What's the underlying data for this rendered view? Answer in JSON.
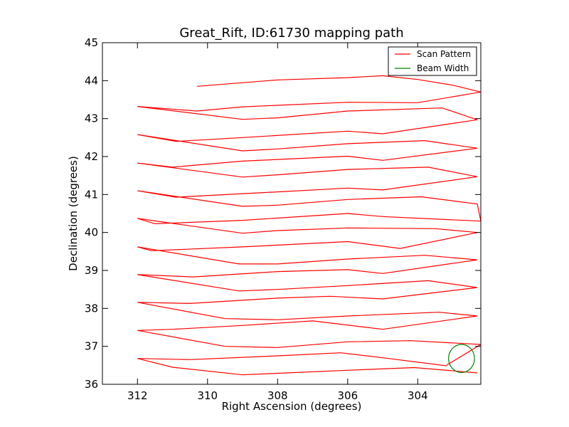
{
  "chart_data": {
    "type": "line",
    "title": "Great_Rift, ID:61730 mapping path",
    "xlabel": "Right Ascension (degrees)",
    "ylabel": "Declination (degrees)",
    "xlim": [
      313.0,
      302.2
    ],
    "ylim": [
      36,
      45
    ],
    "x_ticks": [
      312,
      310,
      308,
      306,
      304
    ],
    "y_ticks": [
      36,
      37,
      38,
      39,
      40,
      41,
      42,
      43,
      44,
      45
    ],
    "grid": false,
    "legend": {
      "placement": "top-right",
      "entries": [
        "Scan Pattern",
        "Beam Width"
      ]
    },
    "colors": {
      "scan": "#ff0000",
      "beam": "#008000"
    },
    "series": [
      {
        "name": "Scan Pattern",
        "points": [
          [
            302.3,
            36.3
          ],
          [
            304.1,
            36.44
          ],
          [
            306,
            36.37
          ],
          [
            308,
            36.29
          ],
          [
            309,
            36.25
          ],
          [
            311,
            36.45
          ],
          [
            312,
            36.68
          ],
          [
            310.5,
            36.65
          ],
          [
            308,
            36.75
          ],
          [
            306.2,
            36.83
          ],
          [
            305,
            36.7
          ],
          [
            303.2,
            36.49
          ],
          [
            302.2,
            37.05
          ],
          [
            304.2,
            37.15
          ],
          [
            306,
            37.12
          ],
          [
            308,
            36.97
          ],
          [
            309.5,
            37
          ],
          [
            312,
            37.42
          ],
          [
            311,
            37.45
          ],
          [
            309,
            37.55
          ],
          [
            307,
            37.67
          ],
          [
            305,
            37.45
          ],
          [
            302.3,
            37.8
          ],
          [
            303.4,
            37.9
          ],
          [
            306,
            37.8
          ],
          [
            308,
            37.7
          ],
          [
            309.5,
            37.73
          ],
          [
            312,
            38.16
          ],
          [
            310.5,
            38.13
          ],
          [
            308,
            38.27
          ],
          [
            306.5,
            38.32
          ],
          [
            305,
            38.25
          ],
          [
            302.3,
            38.55
          ],
          [
            303.7,
            38.73
          ],
          [
            306,
            38.6
          ],
          [
            308,
            38.5
          ],
          [
            309.1,
            38.46
          ],
          [
            312,
            38.89
          ],
          [
            310.4,
            38.83
          ],
          [
            308,
            38.97
          ],
          [
            306,
            39.02
          ],
          [
            305,
            38.92
          ],
          [
            302.3,
            39.28
          ],
          [
            303.8,
            39.4
          ],
          [
            306,
            39.3
          ],
          [
            308,
            39.17
          ],
          [
            309.1,
            39.17
          ],
          [
            312,
            39.62
          ],
          [
            311.6,
            39.52
          ],
          [
            309,
            39.62
          ],
          [
            306,
            39.76
          ],
          [
            304.5,
            39.58
          ],
          [
            302.3,
            40
          ],
          [
            303.5,
            40.1
          ],
          [
            306,
            40.12
          ],
          [
            308,
            40.05
          ],
          [
            309,
            39.98
          ],
          [
            312,
            40.37
          ],
          [
            311.5,
            40.23
          ],
          [
            309,
            40.32
          ],
          [
            306,
            40.5
          ],
          [
            305,
            40.42
          ],
          [
            302.2,
            40.3
          ],
          [
            302.3,
            40.75
          ],
          [
            303.9,
            40.94
          ],
          [
            306,
            40.87
          ],
          [
            308,
            40.72
          ],
          [
            309,
            40.69
          ],
          [
            312,
            41.1
          ],
          [
            310.9,
            40.93
          ],
          [
            308,
            41.07
          ],
          [
            306,
            41.17
          ],
          [
            305,
            41.12
          ],
          [
            302.3,
            41.47
          ],
          [
            303.7,
            41.72
          ],
          [
            306,
            41.66
          ],
          [
            308,
            41.52
          ],
          [
            309,
            41.46
          ],
          [
            312,
            41.83
          ],
          [
            311,
            41.72
          ],
          [
            309,
            41.88
          ],
          [
            306,
            42.01
          ],
          [
            305,
            41.9
          ],
          [
            302.3,
            42.22
          ],
          [
            303.8,
            42.42
          ],
          [
            306,
            42.34
          ],
          [
            308,
            42.2
          ],
          [
            309,
            42.15
          ],
          [
            312,
            42.58
          ],
          [
            310.9,
            42.4
          ],
          [
            309,
            42.5
          ],
          [
            306,
            42.67
          ],
          [
            305,
            42.6
          ],
          [
            302.3,
            42.97
          ],
          [
            303.3,
            43.28
          ],
          [
            306,
            43.2
          ],
          [
            308,
            43.02
          ],
          [
            309,
            42.98
          ],
          [
            312,
            43.32
          ],
          [
            310.3,
            43.2
          ],
          [
            309,
            43.31
          ],
          [
            306,
            43.43
          ],
          [
            304,
            43.42
          ],
          [
            302.2,
            43.7
          ],
          [
            303,
            43.88
          ],
          [
            304,
            44.03
          ],
          [
            305,
            44.13
          ],
          [
            306,
            44.08
          ],
          [
            308,
            44.02
          ],
          [
            310.3,
            43.85
          ]
        ]
      },
      {
        "name": "Beam Width",
        "shape": "circle",
        "center": [
          302.75,
          36.68
        ],
        "radius_deg": 0.37
      }
    ]
  }
}
